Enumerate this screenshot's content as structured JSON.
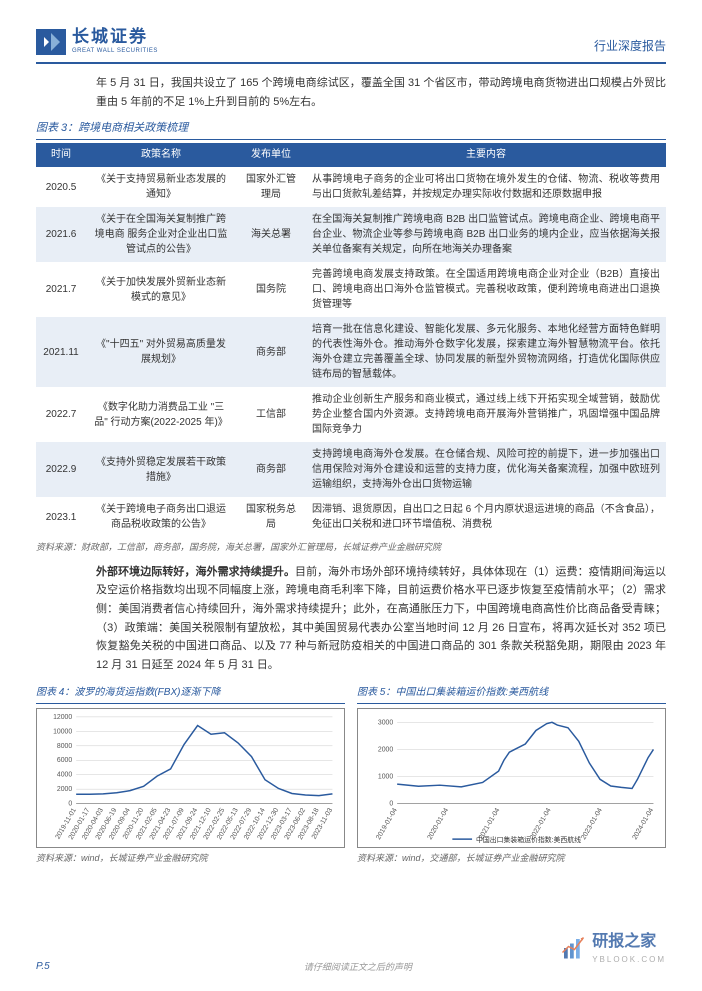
{
  "header": {
    "logo_cn": "长城证券",
    "logo_en": "GREAT WALL SECURITIES",
    "label_right": "行业深度报告"
  },
  "intro_para": "年 5 月 31 日，我国共设立了 165 个跨境电商综试区，覆盖全国 31 个省区市，带动跨境电商货物进出口规模占外贸比重由 5 年前的不足 1%上升到目前的 5%左右。",
  "table3": {
    "title": "图表 3：跨境电商相关政策梳理",
    "cols": [
      "时间",
      "政策名称",
      "发布单位",
      "主要内容"
    ],
    "rows": [
      {
        "time": "2020.5",
        "name": "《关于支持贸易新业态发展的通知》",
        "unit": "国家外汇管理局",
        "content": "从事跨境电子商务的企业可将出口货物在境外发生的仓储、物流、税收等费用与出口货款轧差结算，并按规定办理实际收付数据和还原数据申报"
      },
      {
        "time": "2021.6",
        "name": "《关于在全国海关复制推广跨境电商 服务企业对企业出口监管试点的公告》",
        "unit": "海关总署",
        "content": "在全国海关复制推广跨境电商 B2B 出口监管试点。跨境电商企业、跨境电商平台企业、物流企业等参与跨境电商 B2B 出口业务的境内企业，应当依据海关报关单位备案有关规定，向所在地海关办理备案"
      },
      {
        "time": "2021.7",
        "name": "《关于加快发展外贸新业态新模式的意见》",
        "unit": "国务院",
        "content": "完善跨境电商发展支持政策。在全国适用跨境电商企业对企业（B2B）直接出口、跨境电商出口海外仓监管模式。完善税收政策，便利跨境电商进出口退换货管理等"
      },
      {
        "time": "2021.11",
        "name": "《\"十四五\" 对外贸易高质量发展规划》",
        "unit": "商务部",
        "content": "培育一批在信息化建设、智能化发展、多元化服务、本地化经营方面特色鲜明的代表性海外仓。推动海外仓数字化发展，探索建立海外智慧物流平台。依托海外仓建立完善覆盖全球、协同发展的新型外贸物流网络，打造优化国际供应链布局的智慧载体。"
      },
      {
        "time": "2022.7",
        "name": "《数字化助力消费品工业 \"三品\" 行动方案(2022-2025 年)》",
        "unit": "工信部",
        "content": "推动企业创新生产服务和商业模式，通过线上线下开拓实现全域营销，鼓励优势企业整合国内外资源。支持跨境电商开展海外营销推广，巩固增强中国品牌国际竞争力"
      },
      {
        "time": "2022.9",
        "name": "《支持外贸稳定发展若干政策措施》",
        "unit": "商务部",
        "content": "支持跨境电商海外仓发展。在仓储合规、风险可控的前提下，进一步加强出口信用保险对海外仓建设和运营的支持力度，优化海关备案流程，加强中欧班列运输组织，支持海外仓出口货物运输"
      },
      {
        "time": "2023.1",
        "name": "《关于跨境电子商务出口退运商品税收政策的公告》",
        "unit": "国家税务总局",
        "content": "因滞销、退货原因，自出口之日起 6 个月内原状退运进境的商品（不含食品），免征出口关税和进口环节增值税、消费税"
      }
    ],
    "source": "资料来源：财政部，工信部，商务部，国务院，海关总署，国家外汇管理局，长城证券产业金融研究院"
  },
  "para2_bold": "外部环境边际转好，海外需求持续提升。",
  "para2_body": "目前，海外市场外部环境持续转好，具体体现在（1）运费：疫情期间海运以及空运价格指数均出现不同幅度上涨，跨境电商毛利率下降，目前运费价格水平已逐步恢复至疫情前水平；（2）需求侧：美国消费者信心持续回升，海外需求持续提升；此外，在高通胀压力下，中国跨境电商高性价比商品备受青睐；（3）政策端：美国关税限制有望放松，其中美国贸易代表办公室当地时间 12 月 26 日宣布，将再次延长对 352 项已恢复豁免关税的中国进口商品、以及 77 种与新冠防疫相关的中国进口商品的 301 条款关税豁免期，期限由 2023 年 12 月 31 日延至 2024 年 5 月 31 日。",
  "chart4": {
    "title": "图表 4：波罗的海货运指数(FBX)逐渐下降",
    "type": "line",
    "x_labels": [
      "2019-11-01",
      "2020-01-17",
      "2020-04-03",
      "2020-06-19",
      "2020-09-04",
      "2020-11-20",
      "2021-02-05",
      "2021-04-23",
      "2021-07-09",
      "2021-09-24",
      "2021-12-10",
      "2022-02-25",
      "2022-05-13",
      "2022-07-29",
      "2022-10-14",
      "2022-12-30",
      "2023-03-17",
      "2023-06-02",
      "2023-08-18",
      "2023-11-03"
    ],
    "y_ticks": [
      0,
      2000,
      4000,
      6000,
      8000,
      10000,
      12000
    ],
    "ylim": [
      0,
      12000
    ],
    "values": [
      1300,
      1300,
      1350,
      1500,
      1800,
      2400,
      3800,
      4800,
      8200,
      10800,
      9600,
      9800,
      8400,
      6500,
      3300,
      2100,
      1400,
      1200,
      1100,
      1350
    ],
    "line_color": "#2a5a9e",
    "background_color": "#ffffff",
    "grid_color": "#cccccc",
    "label_rotate": -60,
    "font_size": 7,
    "source": "资料来源：wind，长城证券产业金融研究院"
  },
  "chart5": {
    "title": "图表 5：中国出口集装箱运价指数:美西航线",
    "type": "line",
    "legend": "中国出口集装箱运价指数:美西航线",
    "x_labels": [
      "2019-01-04",
      "2020-01-04",
      "2021-01-04",
      "2022-01-04",
      "2023-01-04",
      "2024-01-04"
    ],
    "y_ticks": [
      0,
      1000,
      2000,
      3000
    ],
    "ylim": [
      0,
      3200
    ],
    "x_raw": [
      0,
      2,
      4,
      6,
      8,
      9.5,
      10,
      10.5,
      11,
      12,
      13,
      14,
      14.5,
      15,
      16,
      17,
      18,
      19,
      20,
      21,
      22,
      22.5,
      23,
      23.5,
      24
    ],
    "y_raw": [
      720,
      640,
      680,
      620,
      780,
      1200,
      1600,
      1900,
      2000,
      2200,
      2700,
      2950,
      3000,
      2900,
      2800,
      2300,
      1500,
      900,
      650,
      600,
      560,
      900,
      1300,
      1700,
      2000
    ],
    "line_color": "#2a5a9e",
    "background_color": "#ffffff",
    "grid_color": "#cccccc",
    "font_size": 7,
    "source": "资料来源：wind，交通部，长城证券产业金融研究院"
  },
  "footer": {
    "page": "P.5",
    "center": "请仔细阅读正文之后的声明",
    "watermark_cn": "研报之家",
    "watermark_en": "YBLOOK.COM"
  }
}
